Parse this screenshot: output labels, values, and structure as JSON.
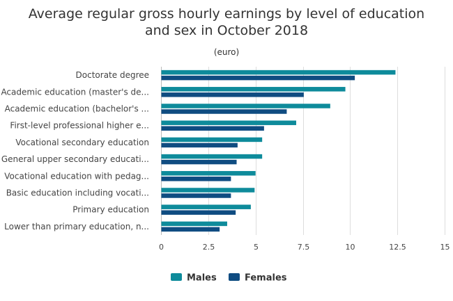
{
  "colors": {
    "males": "#0e8b9b",
    "females": "#0f4c81",
    "grid": "#dddddd",
    "axis": "#bbbbbb"
  },
  "chart_data": {
    "type": "bar",
    "orientation": "horizontal",
    "title_lines": [
      "Average regular gross hourly earnings by level of education",
      "and sex in October 2018"
    ],
    "subtitle": "(euro)",
    "categories": [
      "Doctorate degree",
      "Academic education (master's de...",
      "Academic education (bachelor's ...",
      "First-level professional higher e...",
      "Vocational secondary education",
      "General upper secondary educati...",
      "Vocational education with pedag...",
      "Basic education including vocati...",
      "Primary education",
      "Lower than primary education, n..."
    ],
    "series": [
      {
        "name": "Males",
        "color": "#0e8b9b",
        "values": [
          12.4,
          9.75,
          8.95,
          7.15,
          5.35,
          5.35,
          5.0,
          4.95,
          4.75,
          3.5
        ]
      },
      {
        "name": "Females",
        "color": "#0f4c81",
        "values": [
          10.25,
          7.55,
          6.65,
          5.45,
          4.05,
          4.0,
          3.7,
          3.7,
          3.95,
          3.1
        ]
      }
    ],
    "xlim": [
      0,
      15
    ],
    "xticks": [
      "0",
      "2.5",
      "5",
      "7.5",
      "10",
      "12.5",
      "15"
    ],
    "grid": true,
    "legend": "bottom"
  }
}
